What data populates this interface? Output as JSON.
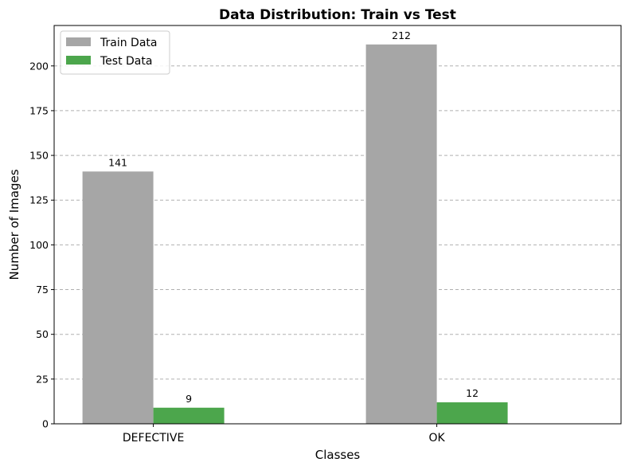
{
  "chart_data": {
    "type": "bar",
    "title": "Data Distribution: Train vs Test",
    "xlabel": "Classes",
    "ylabel": "Number of Images",
    "categories": [
      "DEFECTIVE",
      "OK"
    ],
    "series": [
      {
        "name": "Train Data",
        "values": [
          141,
          212
        ],
        "color": "#a6a6a6"
      },
      {
        "name": "Test Data",
        "values": [
          9,
          12
        ],
        "color": "#4ca64c"
      }
    ],
    "ylim": [
      0,
      222.6
    ],
    "yticks": [
      0,
      25,
      50,
      75,
      100,
      125,
      150,
      175,
      200
    ],
    "grid": "y-dashed",
    "legend_position": "top-left"
  }
}
